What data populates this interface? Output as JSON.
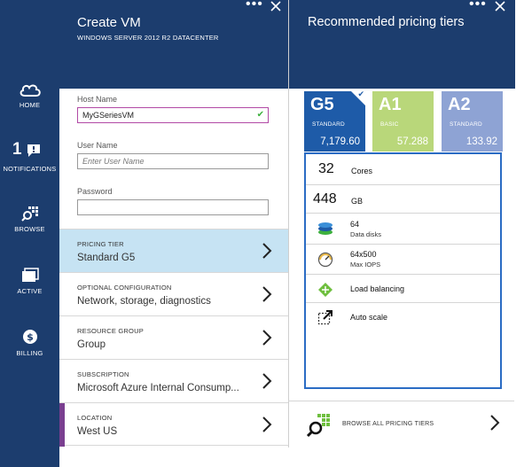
{
  "nav": {
    "items": [
      {
        "label": "HOME",
        "icon": "cloud-icon"
      },
      {
        "label": "NOTIFICATIONS",
        "icon": "notification-icon",
        "count": "1"
      },
      {
        "label": "BROWSE",
        "icon": "browse-icon"
      },
      {
        "label": "ACTIVE",
        "icon": "active-icon"
      },
      {
        "label": "BILLING",
        "icon": "billing-icon"
      }
    ]
  },
  "create_vm": {
    "title": "Create VM",
    "subtitle": "WINDOWS SERVER 2012 R2 DATACENTER",
    "host_name": {
      "label": "Host Name",
      "value": "MyGSeriesVM"
    },
    "user_name": {
      "label": "User Name",
      "placeholder": "Enter User Name"
    },
    "password": {
      "label": "Password",
      "value": ""
    },
    "rows": [
      {
        "label": "PRICING TIER",
        "value": "Standard G5"
      },
      {
        "label": "OPTIONAL CONFIGURATION",
        "value": "Network, storage, diagnostics"
      },
      {
        "label": "RESOURCE GROUP",
        "value": "Group"
      },
      {
        "label": "SUBSCRIPTION",
        "value": "Microsoft Azure Internal Consump..."
      },
      {
        "label": "LOCATION",
        "value": "West US"
      }
    ]
  },
  "pricing": {
    "title": "Recommended pricing tiers",
    "tiers": [
      {
        "name": "G5",
        "tier": "STANDARD",
        "price": "7,179.60",
        "color": "#1e5ba8",
        "selected": true
      },
      {
        "name": "A1",
        "tier": "BASIC",
        "price": "57.288",
        "color": "#b9d77a",
        "selected": false
      },
      {
        "name": "A2",
        "tier": "STANDARD",
        "price": "133.92",
        "color": "#8ea3d4",
        "selected": false
      }
    ],
    "specs": {
      "cores_value": "32",
      "cores_unit": "Cores",
      "ram_value": "448",
      "ram_unit": "GB",
      "disks_value": "64",
      "disks_label": "Data disks",
      "iops_value": "64x500",
      "iops_label": "Max IOPS",
      "load_balancing": "Load balancing",
      "auto_scale": "Auto scale"
    },
    "browse_label": "BROWSE ALL PRICING TIERS"
  },
  "colors": {
    "nav_bg": "#1c3d6e",
    "selected_row": "#c6e3f3",
    "accent_purple": "#7a3f90",
    "card_border": "#2b6cc4"
  }
}
